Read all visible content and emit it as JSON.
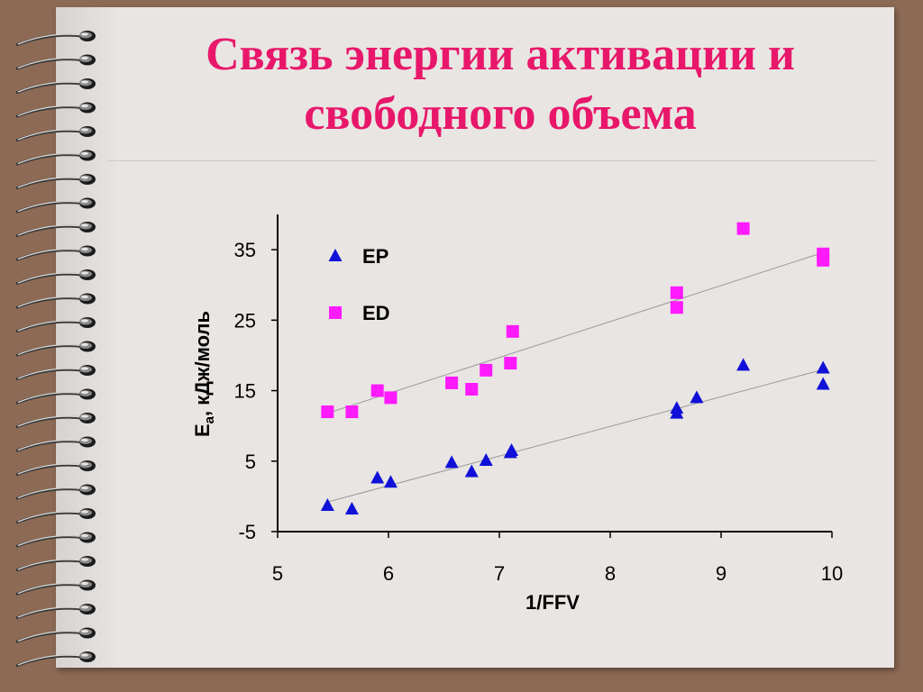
{
  "slide": {
    "title_line1": "Связь энергии активации и",
    "title_line2": "свободного объема"
  },
  "colors": {
    "title": "#e8176a",
    "ep": "#1010d8",
    "ed": "#ff1aff",
    "trend": "#9a9a9a"
  },
  "chart_data": {
    "type": "scatter",
    "xlabel": "1/FFV",
    "ylabel_main": "E",
    "ylabel_sub": "a",
    "ylabel_rest": ", кДж/моль",
    "xlim": [
      5,
      10
    ],
    "ylim": [
      -5,
      40
    ],
    "xticks": [
      "5",
      "6",
      "7",
      "8",
      "9",
      "10"
    ],
    "xtick_values": [
      5,
      6,
      7,
      8,
      9,
      10
    ],
    "yticks": [
      "-5",
      "5",
      "15",
      "25",
      "35"
    ],
    "ytick_values": [
      -5,
      5,
      15,
      25,
      35
    ],
    "legend_placement": "top-left",
    "grid": false,
    "series": [
      {
        "name": "EP",
        "marker": "triangle",
        "x": [
          5.45,
          5.67,
          5.9,
          6.02,
          6.57,
          6.75,
          6.88,
          7.1,
          7.11,
          8.6,
          8.6,
          8.78,
          9.2,
          9.92,
          9.92
        ],
        "y": [
          -1.3,
          -1.8,
          2.6,
          2.0,
          4.8,
          3.5,
          5.1,
          6.2,
          6.5,
          12.5,
          11.8,
          14.0,
          18.6,
          18.2,
          15.9
        ],
        "trend": [
          [
            5.45,
            -0.8
          ],
          [
            9.92,
            18.0
          ]
        ]
      },
      {
        "name": "ED",
        "marker": "square",
        "x": [
          5.45,
          5.67,
          5.9,
          6.02,
          6.57,
          6.75,
          6.88,
          7.1,
          7.12,
          8.6,
          8.6,
          9.2,
          9.92,
          9.92
        ],
        "y": [
          12.0,
          12.0,
          15.0,
          14.0,
          16.1,
          15.2,
          17.9,
          18.9,
          23.4,
          26.8,
          28.9,
          38.0,
          34.4,
          33.5
        ],
        "trend": [
          [
            5.45,
            11.8
          ],
          [
            9.92,
            34.6
          ]
        ]
      }
    ]
  }
}
